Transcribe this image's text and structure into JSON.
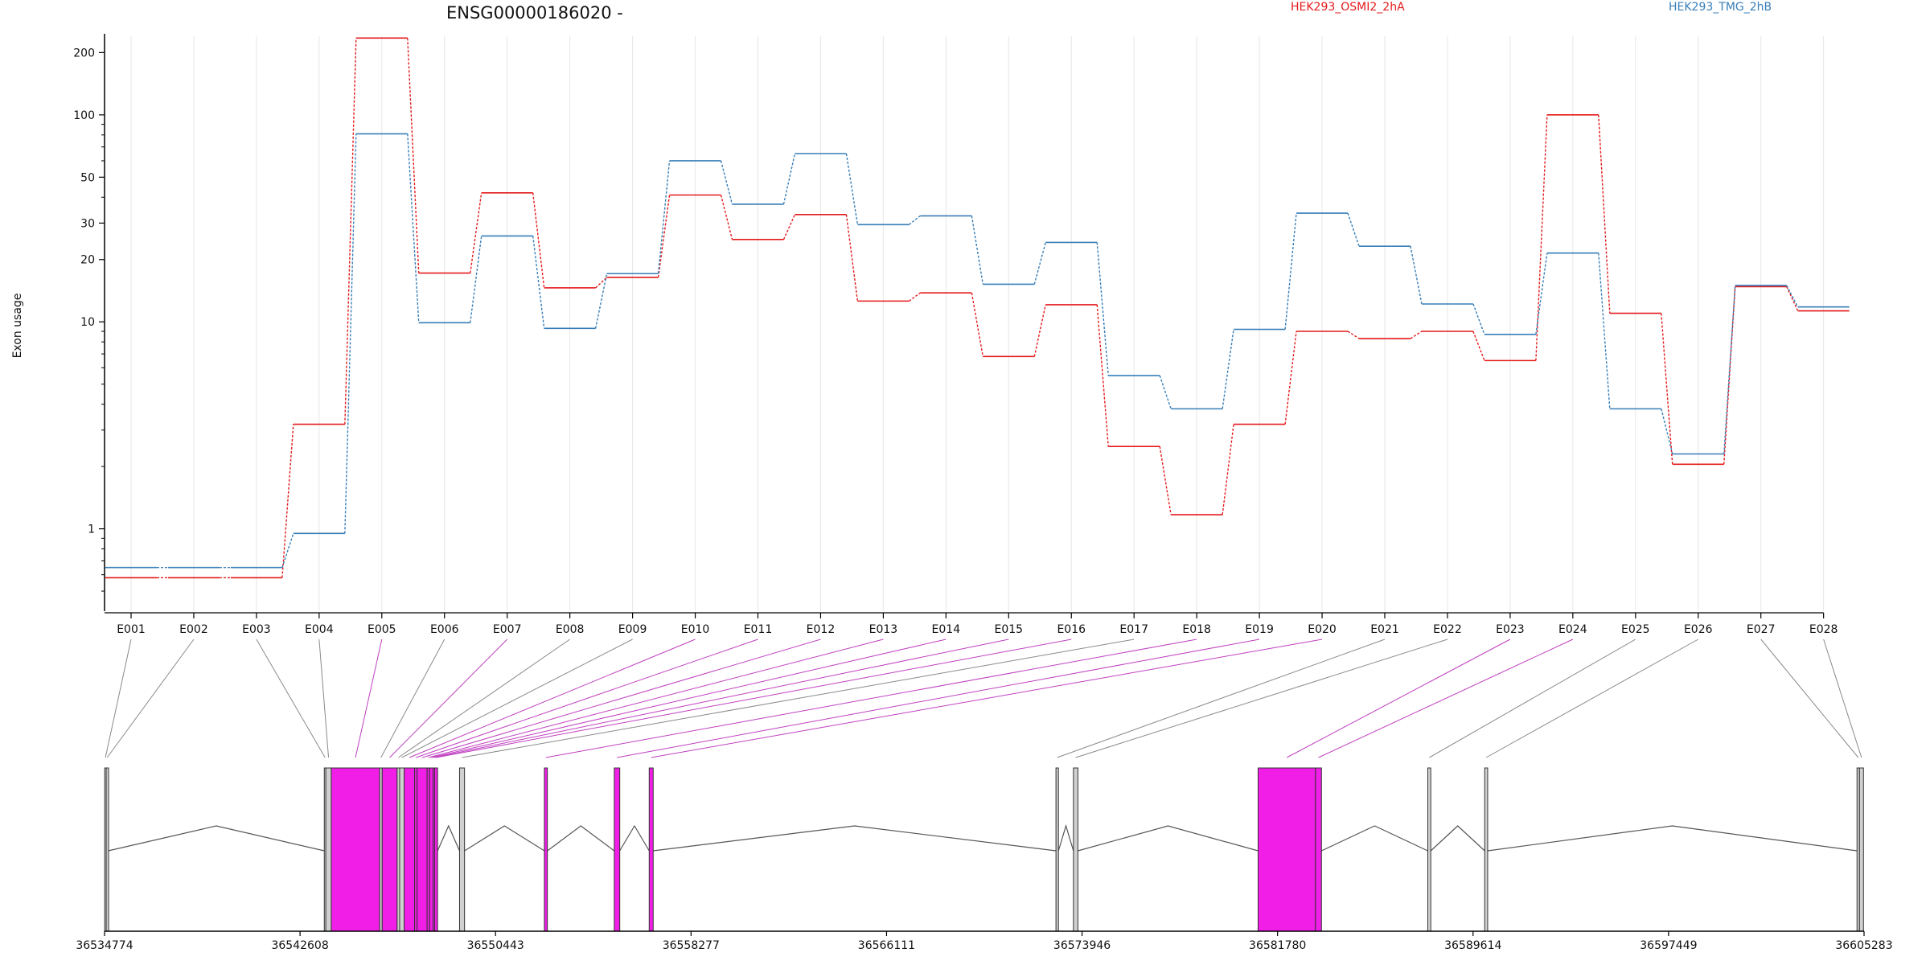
{
  "chart_data": {
    "type": "line",
    "title": "ENSG00000186020 -",
    "ylabel": "Exon usage",
    "yscale": "log",
    "ylim": [
      0.4,
      240
    ],
    "yticks": [
      1,
      10,
      20,
      30,
      50,
      100,
      200
    ],
    "grid": "vertical",
    "legend_placement": "top",
    "categories": [
      "E001",
      "E002",
      "E003",
      "E004",
      "E005",
      "E006",
      "E007",
      "E008",
      "E009",
      "E010",
      "E011",
      "E012",
      "E013",
      "E014",
      "E015",
      "E016",
      "E017",
      "E018",
      "E019",
      "E020",
      "E021",
      "E022",
      "E023",
      "E024",
      "E025",
      "E026",
      "E027",
      "E028"
    ],
    "series": [
      {
        "name": "HEK293_OSMI2_2hA",
        "color": "#e41a1c",
        "values": [
          0.58,
          0.58,
          0.58,
          3.2,
          235,
          17.2,
          42,
          14.6,
          16.4,
          41,
          25,
          33,
          12.6,
          13.8,
          6.8,
          12.1,
          2.5,
          1.17,
          3.2,
          9.0,
          8.3,
          9.0,
          6.5,
          100,
          11,
          2.05,
          14.8,
          11.3
        ]
      },
      {
        "name": "HEK293_TMG_2hB",
        "color": "#377eb8",
        "values": [
          0.65,
          0.65,
          0.65,
          0.95,
          81,
          9.9,
          26,
          9.3,
          17.1,
          60,
          37,
          65,
          29.5,
          32.5,
          15.2,
          24.2,
          5.5,
          3.8,
          9.2,
          33.5,
          23.2,
          12.2,
          8.7,
          21.5,
          3.8,
          2.3,
          15,
          11.8
        ]
      }
    ],
    "gene_model": {
      "coordinate_ticks": [
        "36534774",
        "36542608",
        "36550443",
        "36558277",
        "36566111",
        "36573946",
        "36581780",
        "36589614",
        "36597449",
        "36605283"
      ],
      "exons": [
        {
          "label": "E001",
          "start": 36534780,
          "end": 36534840,
          "highlight": false
        },
        {
          "label": "E002",
          "start": 36534840,
          "end": 36534920,
          "highlight": false
        },
        {
          "label": "E003",
          "start": 36543580,
          "end": 36543640,
          "highlight": false
        },
        {
          "label": "E004",
          "start": 36543640,
          "end": 36543860,
          "highlight": false
        },
        {
          "label": "E005",
          "start": 36543860,
          "end": 36545800,
          "highlight": true
        },
        {
          "label": "E006",
          "start": 36545800,
          "end": 36545900,
          "highlight": false
        },
        {
          "label": "E007",
          "start": 36545900,
          "end": 36546500,
          "highlight": true
        },
        {
          "label": "E008",
          "start": 36546500,
          "end": 36546600,
          "highlight": false
        },
        {
          "label": "E009",
          "start": 36546600,
          "end": 36546780,
          "highlight": false
        },
        {
          "label": "E010",
          "start": 36546780,
          "end": 36547200,
          "highlight": true
        },
        {
          "label": "E011",
          "start": 36547200,
          "end": 36547300,
          "highlight": true
        },
        {
          "label": "E012",
          "start": 36547300,
          "end": 36547700,
          "highlight": true
        },
        {
          "label": "E013",
          "start": 36547700,
          "end": 36547800,
          "highlight": true
        },
        {
          "label": "E014",
          "start": 36547800,
          "end": 36547940,
          "highlight": true
        },
        {
          "label": "E015",
          "start": 36547940,
          "end": 36548000,
          "highlight": true
        },
        {
          "label": "E016",
          "start": 36548000,
          "end": 36548120,
          "highlight": true
        },
        {
          "label": "E017",
          "start": 36549000,
          "end": 36549200,
          "highlight": false
        },
        {
          "label": "E018",
          "start": 36552400,
          "end": 36552520,
          "highlight": true
        },
        {
          "label": "E019",
          "start": 36555200,
          "end": 36555420,
          "highlight": true
        },
        {
          "label": "E020",
          "start": 36556600,
          "end": 36556760,
          "highlight": true
        },
        {
          "label": "E021",
          "start": 36572900,
          "end": 36573000,
          "highlight": false
        },
        {
          "label": "E022",
          "start": 36573600,
          "end": 36573780,
          "highlight": false
        },
        {
          "label": "E023",
          "start": 36581000,
          "end": 36583300,
          "highlight": true
        },
        {
          "label": "E024",
          "start": 36583300,
          "end": 36583540,
          "highlight": true
        },
        {
          "label": "E025",
          "start": 36587800,
          "end": 36587920,
          "highlight": false
        },
        {
          "label": "E026",
          "start": 36590080,
          "end": 36590200,
          "highlight": false
        },
        {
          "label": "E027",
          "start": 36605000,
          "end": 36605100,
          "highlight": false
        },
        {
          "label": "E028",
          "start": 36605100,
          "end": 36605260,
          "highlight": false
        }
      ],
      "highlight_color": "#f01ee6",
      "plain_exon_color": "#d0d0d0",
      "intron_color": "#555555"
    }
  }
}
